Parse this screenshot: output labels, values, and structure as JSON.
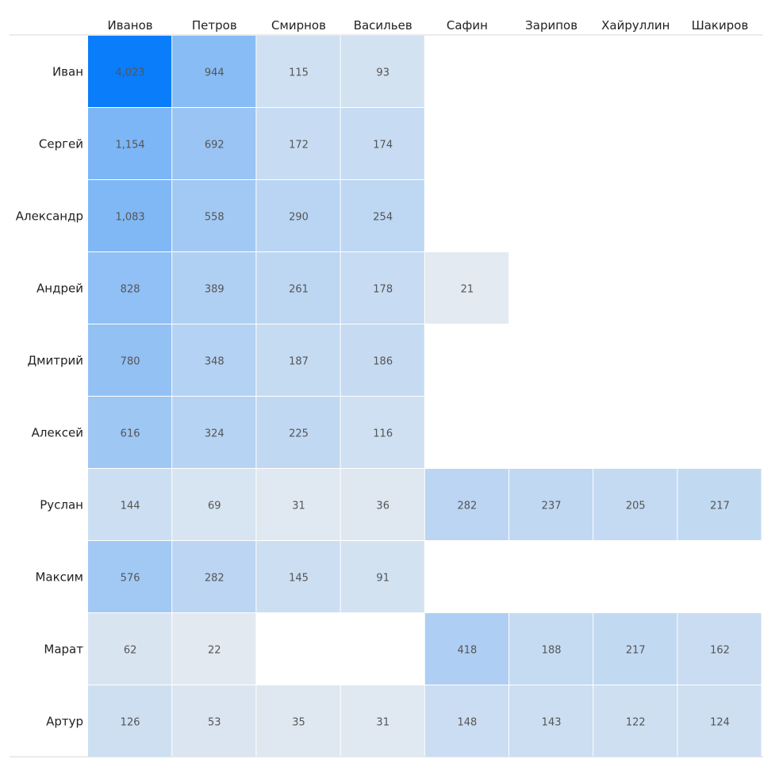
{
  "chart_data": {
    "type": "heatmap",
    "columns": [
      "Иванов",
      "Петров",
      "Смирнов",
      "Васильев",
      "Сафин",
      "Зарипов",
      "Хайруллин",
      "Шакиров"
    ],
    "rows": [
      "Иван",
      "Сергей",
      "Александр",
      "Андрей",
      "Дмитрий",
      "Алексей",
      "Руслан",
      "Максим",
      "Марат",
      "Артур"
    ],
    "values": [
      [
        4023,
        944,
        115,
        93,
        null,
        null,
        null,
        null
      ],
      [
        1154,
        692,
        172,
        174,
        null,
        null,
        null,
        null
      ],
      [
        1083,
        558,
        290,
        254,
        null,
        null,
        null,
        null
      ],
      [
        828,
        389,
        261,
        178,
        21,
        null,
        null,
        null
      ],
      [
        780,
        348,
        187,
        186,
        null,
        null,
        null,
        null
      ],
      [
        616,
        324,
        225,
        116,
        null,
        null,
        null,
        null
      ],
      [
        144,
        69,
        31,
        36,
        282,
        237,
        205,
        217
      ],
      [
        576,
        282,
        145,
        91,
        null,
        null,
        null,
        null
      ],
      [
        62,
        22,
        null,
        null,
        418,
        188,
        217,
        162
      ],
      [
        126,
        53,
        35,
        31,
        148,
        143,
        122,
        124
      ]
    ],
    "value_labels": [
      [
        "4,023",
        "944",
        "115",
        "93",
        null,
        null,
        null,
        null
      ],
      [
        "1,154",
        "692",
        "172",
        "174",
        null,
        null,
        null,
        null
      ],
      [
        "1,083",
        "558",
        "290",
        "254",
        null,
        null,
        null,
        null
      ],
      [
        "828",
        "389",
        "261",
        "178",
        "21",
        null,
        null,
        null
      ],
      [
        "780",
        "348",
        "187",
        "186",
        null,
        null,
        null,
        null
      ],
      [
        "616",
        "324",
        "225",
        "116",
        null,
        null,
        null,
        null
      ],
      [
        "144",
        "69",
        "31",
        "36",
        "282",
        "237",
        "205",
        "217"
      ],
      [
        "576",
        "282",
        "145",
        "91",
        null,
        null,
        null,
        null
      ],
      [
        "62",
        "22",
        null,
        null,
        "418",
        "188",
        "217",
        "162"
      ],
      [
        "126",
        "53",
        "35",
        "31",
        "148",
        "143",
        "122",
        "124"
      ]
    ],
    "color_scale": {
      "low": "#f0f0f0",
      "high": "#0a7dfb",
      "min": 0,
      "max": 4023
    },
    "column_axis_position": "top",
    "legend": false
  }
}
